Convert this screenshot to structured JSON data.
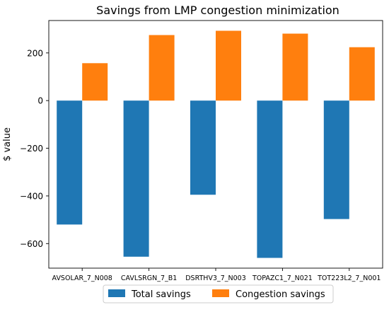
{
  "chart_data": {
    "type": "bar",
    "title": "Savings from LMP congestion minimization",
    "xlabel": "",
    "ylabel": "$ value",
    "categories": [
      "AVSOLAR_7_N008",
      "CAVLSRGN_7_B1",
      "DSRTHV3_7_N003",
      "TOPAZC1_7_N021",
      "TOT223L2_7_N001"
    ],
    "series": [
      {
        "name": "Total savings",
        "color": "#1f77b4",
        "values": [
          -520,
          -655,
          -395,
          -660,
          -497
        ]
      },
      {
        "name": "Congestion savings",
        "color": "#ff7f0e",
        "values": [
          157,
          275,
          293,
          281,
          224
        ]
      }
    ],
    "ylim": [
      -703,
      336
    ],
    "yticks": [
      -600,
      -400,
      -200,
      0,
      200
    ],
    "ytick_labels": [
      "−600",
      "−400",
      "−200",
      "0",
      "200"
    ],
    "grid": false,
    "legend_position": "bottom-center"
  }
}
